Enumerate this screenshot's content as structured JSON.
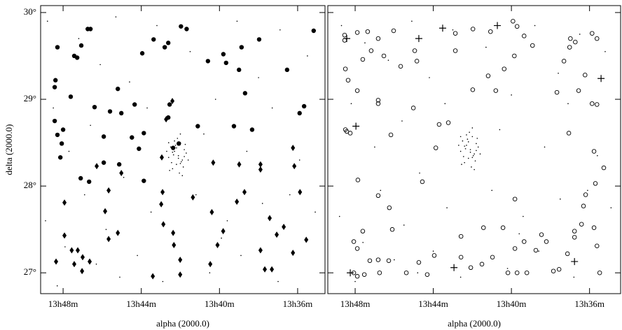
{
  "chart_data": [
    {
      "type": "scatter",
      "xlabel": "alpha (2000.0)",
      "ylabel": "delta (2000.0)",
      "xlim": [
        49.15,
        34.6
      ],
      "ylim": [
        26.76,
        30.08
      ],
      "xticks": [
        {
          "value": 48,
          "label": "13h48m"
        },
        {
          "value": 44,
          "label": "13h44m"
        },
        {
          "value": 40,
          "label": "13h40m"
        },
        {
          "value": 36,
          "label": "13h36m"
        }
      ],
      "yticks": [
        {
          "value": 27,
          "label": "27°"
        },
        {
          "value": 28,
          "label": "28°"
        },
        {
          "value": 29,
          "label": "29°"
        },
        {
          "value": 30,
          "label": "30°"
        }
      ],
      "series": [
        {
          "marker": "dot",
          "color": "#000",
          "x": [
            42.1,
            42.3,
            41.9,
            42.5,
            41.7,
            42.2,
            42.0,
            42.4,
            41.8,
            42.6,
            42.15,
            41.95,
            42.35,
            42.05,
            41.6,
            42.7,
            42.25,
            41.85,
            42.45,
            42.0,
            41.75,
            42.55,
            42.1,
            42.3,
            41.9,
            42.2,
            42.4,
            42.0,
            41.8,
            42.6
          ],
          "y": [
            28.35,
            28.4,
            28.3,
            28.45,
            28.38,
            28.25,
            28.5,
            28.2,
            28.42,
            28.33,
            28.55,
            28.28,
            28.36,
            28.15,
            28.3,
            28.4,
            28.47,
            28.22,
            28.27,
            28.6,
            28.48,
            28.18,
            28.32,
            28.52,
            28.12,
            28.44,
            28.39,
            28.26,
            28.34,
            28.5
          ],
          "x_": null
        },
        {
          "marker": "dot",
          "color": "#000",
          "x": [
            48.8,
            47.2,
            46.1,
            45.3,
            44.6,
            43.2,
            41.5,
            40.2,
            39.1,
            38.0,
            36.9,
            35.5,
            48.5,
            47.7,
            46.6,
            44.9,
            43.7,
            40.8,
            38.6,
            37.3,
            35.9,
            48.9,
            46.9,
            45.8,
            43.5,
            41.2,
            39.6,
            37.8,
            36.4,
            35.1,
            47.9,
            46.3,
            44.2,
            42.9,
            40.5,
            38.9,
            37.0,
            48.3,
            45.1,
            39.9
          ],
          "y": [
            29.9,
            29.7,
            29.4,
            29.95,
            29.2,
            29.85,
            29.55,
            29.0,
            29.9,
            29.25,
            29.8,
            29.5,
            28.9,
            28.4,
            28.7,
            28.1,
            28.9,
            28.6,
            28.4,
            28.9,
            28.3,
            27.6,
            27.9,
            27.5,
            27.7,
            27.9,
            27.6,
            27.8,
            27.9,
            27.7,
            27.3,
            27.1,
            27.2,
            26.9,
            27.0,
            27.2,
            26.9,
            26.85,
            26.95,
            27.4
          ]
        },
        {
          "marker": "circle",
          "color": "#000",
          "x": [
            48.29,
            48.39,
            48.43,
            47.61,
            46.74,
            46.6,
            47.07,
            47.43,
            47.28,
            46.39,
            45.6,
            45.02,
            45.2,
            44.34,
            43.95,
            43.37,
            42.8,
            42.62,
            41.97,
            41.68,
            42.55,
            42.62,
            41.11,
            40.59,
            39.8,
            39.66,
            38.87,
            37.97,
            39.0,
            38.69,
            39.26,
            38.33,
            36.54,
            35.67,
            35.9,
            35.18,
            48.43,
            48.29,
            48.0,
            48.07,
            48.14,
            45.92,
            44.48,
            43.87,
            44.12,
            43.87,
            47.1,
            46.67,
            45.92,
            45.13,
            42.37,
            42.08
          ],
          "y": [
            29.6,
            29.22,
            29.14,
            29.03,
            29.81,
            29.81,
            29.62,
            29.5,
            29.48,
            28.91,
            28.86,
            28.84,
            29.12,
            28.94,
            29.53,
            29.69,
            29.6,
            29.65,
            29.84,
            29.81,
            28.94,
            28.79,
            28.69,
            29.44,
            29.52,
            29.42,
            29.6,
            29.69,
            29.34,
            29.07,
            28.69,
            28.65,
            29.34,
            28.92,
            28.84,
            29.79,
            28.75,
            28.59,
            28.65,
            28.49,
            28.33,
            28.57,
            28.56,
            28.61,
            28.43,
            28.06,
            28.09,
            28.05,
            28.27,
            28.25,
            28.44,
            28.49
          ]
        },
        {
          "marker": "diamond",
          "color": "#000",
          "x": [
            47.93,
            47.93,
            47.56,
            47.25,
            47.0,
            47.43,
            46.64,
            47.03,
            48.36,
            45.67,
            45.85,
            45.67,
            45.2,
            46.28,
            45.02,
            42.91,
            42.98,
            42.87,
            42.37,
            42.33,
            42.01,
            42.01,
            43.41,
            41.36,
            40.39,
            40.1,
            39.81,
            40.47,
            40.32,
            38.99,
            38.72,
            39.11,
            37.9,
            37.9,
            37.9,
            37.68,
            37.32,
            37.43,
            37.07,
            36.71,
            36.24,
            36.17,
            35.88,
            35.56,
            36.24,
            42.73,
            42.41,
            42.95
          ],
          "y": [
            27.81,
            27.43,
            27.26,
            27.26,
            27.18,
            27.1,
            27.13,
            27.02,
            27.13,
            27.95,
            27.71,
            27.39,
            27.46,
            28.23,
            28.15,
            27.93,
            27.79,
            27.56,
            27.46,
            27.32,
            27.15,
            26.98,
            26.96,
            27.87,
            27.7,
            27.32,
            27.48,
            27.1,
            28.27,
            28.25,
            27.93,
            27.82,
            28.25,
            28.19,
            27.26,
            27.04,
            27.04,
            27.63,
            27.44,
            27.53,
            28.44,
            28.23,
            27.93,
            27.38,
            27.23,
            28.77,
            28.98,
            28.33
          ]
        }
      ]
    },
    {
      "type": "scatter",
      "xlabel": "alpha (2000.0)",
      "xlim": [
        49.4,
        34.41
      ],
      "ylim": [
        26.76,
        30.08
      ],
      "xticks": [
        {
          "value": 48,
          "label": "13h48m"
        },
        {
          "value": 44,
          "label": "13h44m"
        },
        {
          "value": 40,
          "label": "13h40m"
        },
        {
          "value": 36,
          "label": "13h36m"
        }
      ],
      "yticks": [
        27,
        28,
        29,
        30
      ],
      "series": [
        {
          "marker": "dot",
          "color": "#000",
          "x": [
            42.1,
            42.3,
            41.9,
            42.5,
            41.7,
            42.2,
            42.0,
            42.4,
            41.8,
            42.6,
            42.15,
            41.95,
            42.35,
            42.05,
            41.6,
            42.7,
            42.25,
            41.85,
            42.45,
            42.0,
            41.75,
            42.55,
            42.1,
            42.3,
            41.9,
            42.2,
            42.4,
            42.0,
            41.8,
            42.6
          ],
          "y": [
            28.42,
            28.47,
            28.37,
            28.52,
            28.45,
            28.32,
            28.57,
            28.27,
            28.49,
            28.4,
            28.62,
            28.35,
            28.43,
            28.22,
            28.37,
            28.47,
            28.54,
            28.29,
            28.34,
            28.67,
            28.55,
            28.25,
            28.39,
            28.59,
            28.19,
            28.51,
            28.46,
            28.33,
            28.41,
            28.57
          ]
        },
        {
          "marker": "dot",
          "color": "#000",
          "x": [
            48.7,
            47.5,
            46.3,
            45.1,
            44.2,
            43.0,
            41.3,
            40.0,
            38.8,
            37.6,
            36.5,
            35.2,
            48.2,
            47.0,
            45.6,
            44.7,
            43.4,
            40.6,
            38.3,
            37.1,
            35.6,
            48.8,
            46.7,
            45.5,
            43.3,
            41.0,
            39.4,
            37.5,
            36.1,
            34.9,
            47.6,
            46.0,
            44.0,
            42.6,
            40.2,
            38.6,
            36.8,
            48.0,
            44.8,
            39.6
          ],
          "y": [
            29.85,
            29.65,
            29.45,
            29.9,
            29.25,
            29.8,
            29.6,
            29.05,
            29.85,
            29.3,
            29.75,
            29.55,
            28.95,
            28.45,
            28.75,
            28.15,
            28.95,
            28.65,
            28.45,
            28.95,
            28.35,
            27.65,
            27.95,
            27.55,
            27.75,
            27.95,
            27.65,
            27.85,
            27.95,
            27.75,
            27.35,
            27.15,
            27.25,
            26.95,
            27.05,
            27.25,
            26.95,
            26.9,
            27.0,
            27.45
          ]
        },
        {
          "marker": "open",
          "color": "#000",
          "x": [
            48.54,
            48.54,
            47.89,
            47.36,
            46.82,
            46.03,
            47.61,
            47.18,
            46.53,
            45.67,
            44.95,
            44.84,
            42.87,
            41.97,
            42.87,
            41.07,
            39.92,
            39.71,
            39.35,
            38.92,
            39.85,
            40.37,
            41.19,
            41.98,
            40.8,
            36.98,
            37.02,
            36.73,
            35.87,
            35.62,
            37.31,
            36.23,
            36.56,
            35.87,
            35.62,
            37.67,
            48.5,
            48.36,
            47.89,
            46.82,
            46.82,
            45.02,
            48.5,
            48.25,
            48.43,
            46.17,
            43.7,
            43.23,
            47.86,
            46.82,
            46.25,
            44.56,
            43.87,
            37.06,
            35.77,
            35.27,
            35.7,
            36.2,
            36.31,
            36.77,
            36.41,
            35.77,
            36.77,
            35.62,
            37.13,
            35.48,
            39.82,
            40.43,
            41.43,
            42.58,
            39.82,
            39.35,
            38.46,
            38.21,
            38.75,
            40.18,
            39.71,
            39.21,
            37.85,
            37.56,
            41.51,
            40.97,
            42.08,
            42.58,
            48.07,
            47.89,
            47.61,
            48.07,
            47.89,
            47.53,
            47.25,
            46.82,
            46.28,
            46.1,
            46.75,
            45.38,
            44.74,
            44.31,
            43.95
          ],
          "y": [
            29.74,
            29.68,
            29.77,
            29.78,
            29.7,
            29.79,
            29.46,
            29.56,
            29.5,
            29.38,
            29.56,
            29.44,
            29.76,
            29.81,
            29.56,
            29.78,
            29.9,
            29.84,
            29.73,
            29.62,
            29.5,
            29.35,
            29.27,
            29.11,
            29.1,
            29.7,
            29.6,
            29.66,
            29.76,
            29.7,
            29.44,
            29.28,
            29.1,
            28.95,
            28.94,
            29.08,
            29.35,
            29.22,
            29.1,
            28.95,
            28.99,
            28.9,
            28.65,
            28.61,
            28.63,
            28.59,
            28.71,
            28.73,
            28.07,
            27.89,
            27.75,
            28.05,
            28.44,
            28.61,
            28.4,
            28.21,
            28.03,
            27.9,
            27.77,
            27.48,
            27.56,
            27.52,
            27.41,
            27.31,
            27.22,
            27.0,
            27.85,
            27.52,
            27.52,
            27.42,
            27.28,
            27.36,
            27.44,
            27.36,
            27.26,
            27.0,
            27.0,
            27.0,
            27.02,
            27.04,
            27.1,
            27.18,
            27.06,
            27.18,
            27.36,
            27.28,
            27.48,
            27.0,
            26.96,
            26.98,
            27.14,
            27.15,
            27.14,
            27.5,
            27.0,
            27.0,
            27.12,
            26.98,
            27.2
          ]
        },
        {
          "marker": "cross",
          "color": "#000",
          "x": [
            48.43,
            44.74,
            43.52,
            40.72,
            35.41,
            47.96,
            42.94,
            36.77,
            48.25
          ],
          "y": [
            29.7,
            29.7,
            29.82,
            29.85,
            29.24,
            28.69,
            27.06,
            27.13,
            27.0
          ]
        }
      ]
    }
  ]
}
